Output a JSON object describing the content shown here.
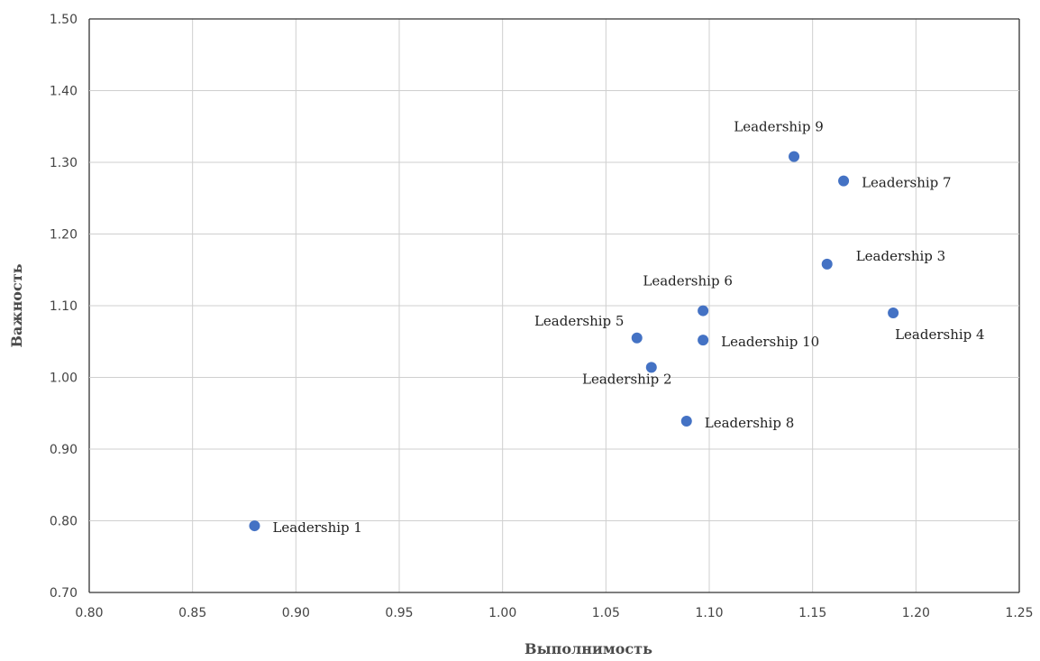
{
  "chart_data": {
    "type": "scatter",
    "title": "",
    "xlabel": "Выполнимость",
    "ylabel": "Важность",
    "xlim": [
      0.8,
      1.25
    ],
    "ylim": [
      0.7,
      1.5
    ],
    "grid": true,
    "marker_color": "#4472c4",
    "x_ticks": [
      "0.80",
      "0.85",
      "0.90",
      "0.95",
      "1.00",
      "1.05",
      "1.10",
      "1.15",
      "1.20",
      "1.25"
    ],
    "y_ticks": [
      "0.70",
      "0.80",
      "0.90",
      "1.00",
      "1.10",
      "1.20",
      "1.30",
      "1.40",
      "1.50"
    ],
    "points": [
      {
        "label": "Leadership 1",
        "x": 0.88,
        "y": 0.793,
        "label_pos": "right"
      },
      {
        "label": "Leadership 2",
        "x": 1.072,
        "y": 1.014,
        "label_pos": "below"
      },
      {
        "label": "Leadership 3",
        "x": 1.157,
        "y": 1.158,
        "label_pos": "upper-right"
      },
      {
        "label": "Leadership 4",
        "x": 1.189,
        "y": 1.09,
        "label_pos": "lower-right"
      },
      {
        "label": "Leadership 5",
        "x": 1.065,
        "y": 1.055,
        "label_pos": "upper-left"
      },
      {
        "label": "Leadership 6",
        "x": 1.097,
        "y": 1.093,
        "label_pos": "above"
      },
      {
        "label": "Leadership 7",
        "x": 1.165,
        "y": 1.274,
        "label_pos": "right"
      },
      {
        "label": "Leadership 8",
        "x": 1.089,
        "y": 0.939,
        "label_pos": "right"
      },
      {
        "label": "Leadership 9",
        "x": 1.141,
        "y": 1.308,
        "label_pos": "above"
      },
      {
        "label": "Leadership 10",
        "x": 1.097,
        "y": 1.052,
        "label_pos": "right"
      }
    ]
  }
}
